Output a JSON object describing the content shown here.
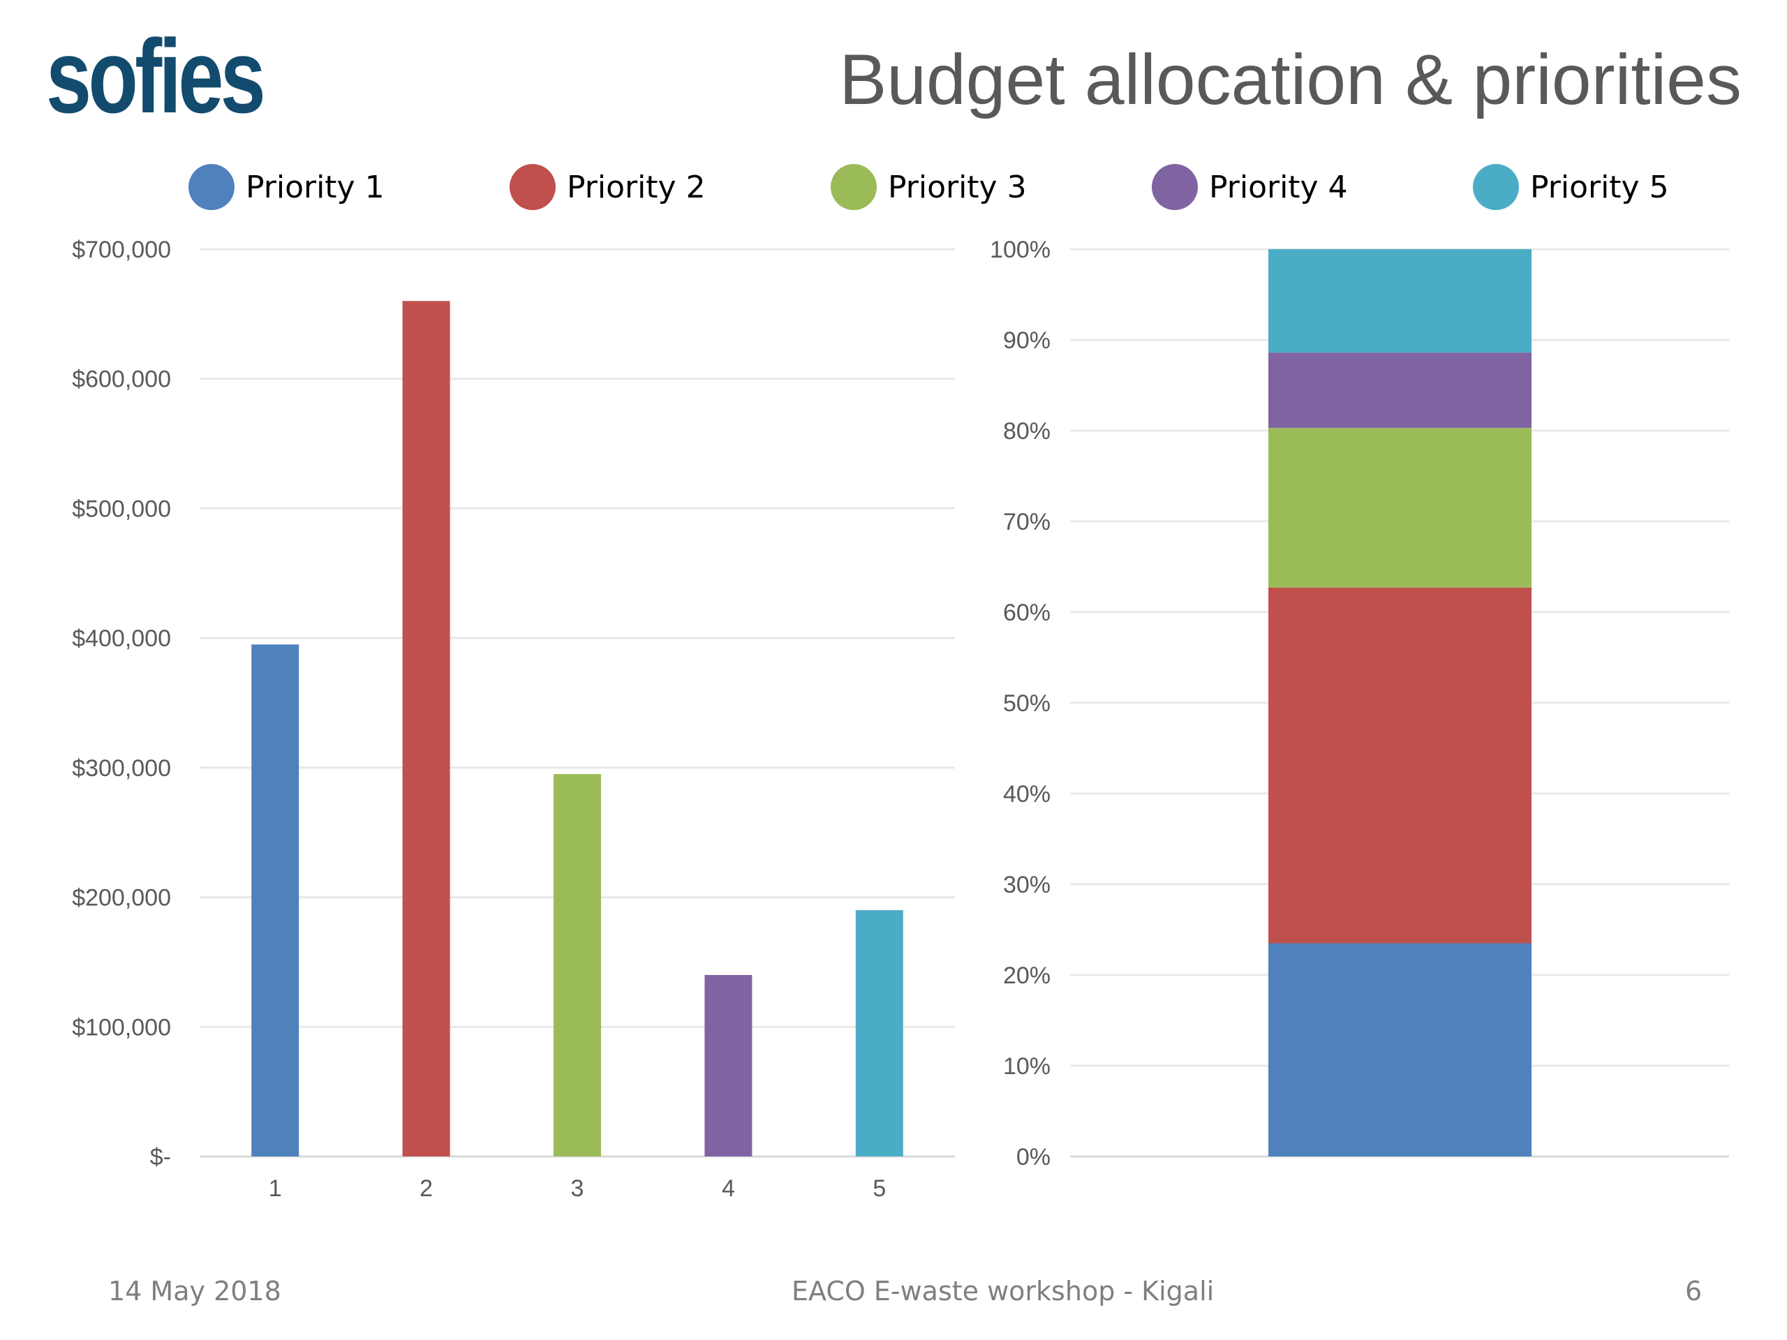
{
  "slide": {
    "logo": "sofies",
    "title": "Budget allocation & priorities",
    "footer_date": "14 May 2018",
    "footer_event": "EACO E-waste workshop - Kigali",
    "page_number": "6"
  },
  "legend": [
    {
      "label": "Priority 1",
      "color": "#4f81bd"
    },
    {
      "label": "Priority 2",
      "color": "#c0504d"
    },
    {
      "label": "Priority 3",
      "color": "#9bbb59"
    },
    {
      "label": "Priority 4",
      "color": "#8064a2"
    },
    {
      "label": "Priority 5",
      "color": "#4bacc6"
    }
  ],
  "chart_data": [
    {
      "type": "bar",
      "title": "",
      "xlabel": "",
      "ylabel": "",
      "categories": [
        "1",
        "2",
        "3",
        "4",
        "5"
      ],
      "values": [
        395000,
        660000,
        295000,
        140000,
        190000
      ],
      "colors": [
        "#4f81bd",
        "#c0504d",
        "#9bbb59",
        "#8064a2",
        "#4bacc6"
      ],
      "ylim": [
        0,
        700000
      ],
      "ticks": [
        0,
        100000,
        200000,
        300000,
        400000,
        500000,
        600000,
        700000
      ],
      "tick_labels": [
        "$-",
        "$100,000",
        "$200,000",
        "$300,000",
        "$400,000",
        "$500,000",
        "$600,000",
        "$700,000"
      ],
      "grid": true
    },
    {
      "type": "bar",
      "stacked": true,
      "title": "",
      "series": [
        {
          "name": "Priority 1",
          "values": [
            23.5
          ],
          "color": "#4f81bd"
        },
        {
          "name": "Priority 2",
          "values": [
            39.2
          ],
          "color": "#c0504d"
        },
        {
          "name": "Priority 3",
          "values": [
            17.6
          ],
          "color": "#9bbb59"
        },
        {
          "name": "Priority 4",
          "values": [
            8.3
          ],
          "color": "#8064a2"
        },
        {
          "name": "Priority 5",
          "values": [
            11.4
          ],
          "color": "#4bacc6"
        }
      ],
      "ylim": [
        0,
        100
      ],
      "ticks": [
        0,
        10,
        20,
        30,
        40,
        50,
        60,
        70,
        80,
        90,
        100
      ],
      "tick_labels": [
        "0%",
        "10%",
        "20%",
        "30%",
        "40%",
        "50%",
        "60%",
        "70%",
        "80%",
        "90%",
        "100%"
      ],
      "grid": true
    }
  ]
}
